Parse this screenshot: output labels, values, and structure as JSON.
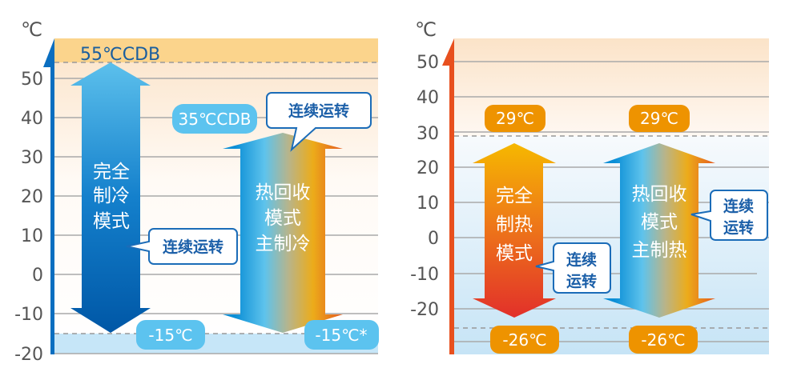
{
  "unit": "℃",
  "colors": {
    "cooling_axis": "#0a6ec0",
    "heating_axis": "#e8501e",
    "pill_blue": "#5cc3ef",
    "pill_orange": "#ee9300",
    "callout_border": "#1b6cb8"
  },
  "cooling": {
    "ticks": [
      "50",
      "40",
      "30",
      "20",
      "10",
      "0",
      "-10",
      "-20"
    ],
    "top_limit_label": "55℃CDB",
    "full_mode": {
      "lines": [
        "完全",
        "制冷",
        "模式"
      ],
      "callout": "连续运转",
      "max": 55,
      "min": -15,
      "min_label": "-15℃"
    },
    "recovery_mode": {
      "lines": [
        "热回收",
        "模式",
        "主制冷"
      ],
      "callout": "连续运转",
      "max": 35,
      "min": -15,
      "max_label": "35℃CDB",
      "min_label": "-15℃*"
    }
  },
  "heating": {
    "ticks": [
      "50",
      "40",
      "30",
      "20",
      "10",
      "0",
      "-10",
      "-20"
    ],
    "full_mode": {
      "lines": [
        "完全",
        "制热",
        "模式"
      ],
      "callout_lines": [
        "连续",
        "运转"
      ],
      "max": 29,
      "min": -26,
      "max_label": "29℃",
      "min_label": "-26℃"
    },
    "recovery_mode": {
      "lines": [
        "热回收",
        "模式",
        "主制热"
      ],
      "callout_lines": [
        "连续",
        "运转"
      ],
      "max": 29,
      "min": -26,
      "max_label": "29℃",
      "min_label": "-26℃"
    }
  }
}
